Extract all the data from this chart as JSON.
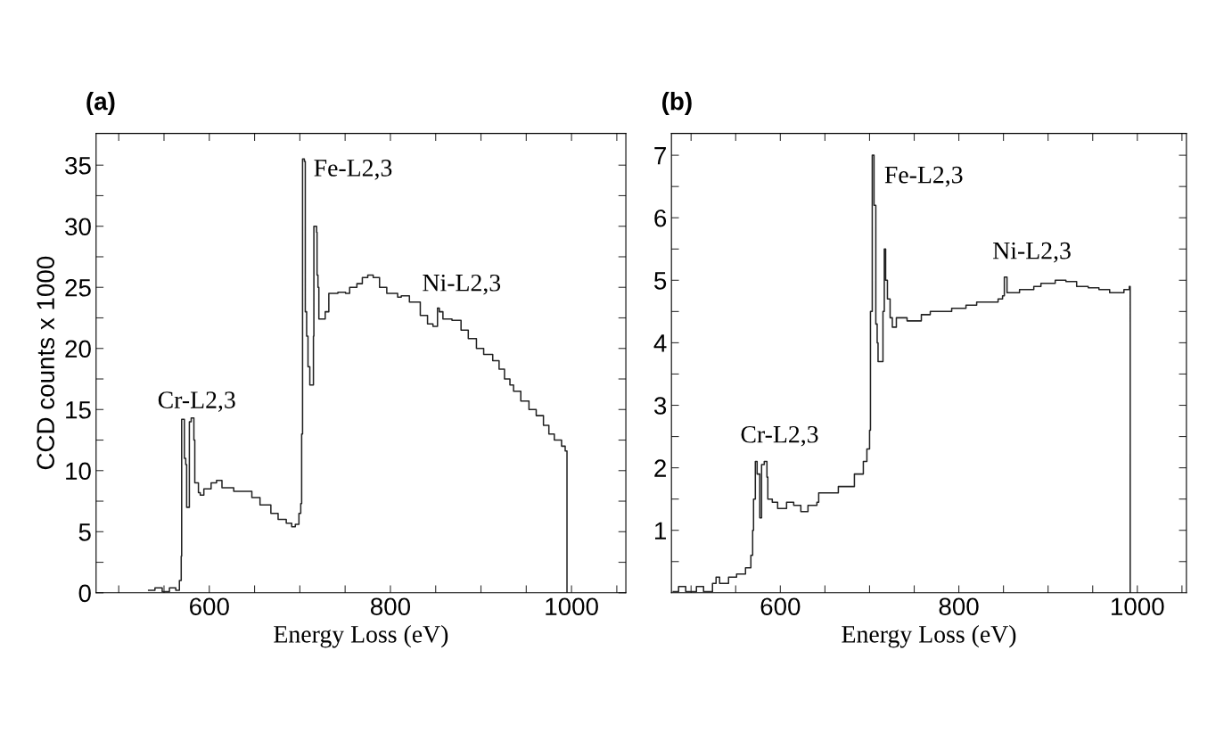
{
  "chart_data": [
    {
      "type": "step",
      "title": "(a)",
      "xlabel": "Energy Loss (eV)",
      "ylabel": "CCD counts x 1000",
      "xlim": [
        475,
        1060
      ],
      "ylim": [
        0,
        37.6
      ],
      "xticks": [
        {
          "value": 500,
          "label": null
        },
        {
          "value": 550,
          "label": null
        },
        600,
        {
          "value": 650,
          "label": null
        },
        {
          "value": 700,
          "label": null
        },
        {
          "value": 750,
          "label": null
        },
        800,
        {
          "value": 850,
          "label": null
        },
        {
          "value": 900,
          "label": null
        },
        {
          "value": 950,
          "label": null
        },
        1000,
        {
          "value": 1050,
          "label": null
        }
      ],
      "yticks": [
        0,
        {
          "value": 2.5,
          "label": null
        },
        5,
        {
          "value": 7.5,
          "label": null
        },
        10,
        {
          "value": 12.5,
          "label": null
        },
        15,
        {
          "value": 17.5,
          "label": null
        },
        20,
        {
          "value": 22.5,
          "label": null
        },
        25,
        {
          "value": 27.5,
          "label": null
        },
        30,
        {
          "value": 32.5,
          "label": null
        },
        35
      ],
      "series": [
        {
          "color": "#222222",
          "x": [
            533,
            540,
            548,
            556,
            563,
            567,
            569,
            569.5,
            572,
            572.5,
            574,
            575,
            577,
            578,
            580,
            583,
            584,
            588,
            590,
            594,
            602,
            608,
            614,
            627,
            639,
            647,
            656,
            668,
            676,
            685,
            691,
            695,
            699,
            701,
            702,
            703,
            705,
            706,
            707.5,
            709,
            710.5,
            711,
            714,
            715,
            715.5,
            718.5,
            719,
            720,
            721,
            726,
            728,
            732,
            742,
            750.5,
            755,
            763,
            769,
            775,
            781,
            788,
            796,
            808,
            812,
            821,
            833,
            841,
            847,
            852,
            854,
            858,
            868,
            878,
            886,
            895,
            903,
            913,
            920,
            926,
            932,
            936,
            944,
            953,
            961,
            969,
            975,
            981,
            989,
            993,
            995
          ],
          "values": [
            0.2,
            0.4,
            0.1,
            0.4,
            0.2,
            1,
            3,
            14.2,
            14.2,
            11,
            10.5,
            7,
            7,
            14,
            14.3,
            12.5,
            9,
            8.2,
            8,
            8.5,
            9,
            9.2,
            8.6,
            8.3,
            8.3,
            7.8,
            7.2,
            6.5,
            6,
            5.7,
            5.4,
            5.6,
            6.5,
            7.3,
            13,
            35.5,
            35.3,
            23,
            21,
            18.5,
            18.5,
            17,
            17,
            21,
            30,
            29.5,
            26,
            25,
            22.4,
            22.4,
            23,
            24.5,
            24.6,
            24.5,
            25,
            25.3,
            25.8,
            26,
            25.8,
            25,
            24.5,
            24.2,
            24.3,
            23.8,
            22.7,
            22,
            21.8,
            23.3,
            23,
            22.4,
            22.3,
            21.5,
            20.8,
            20,
            19.5,
            19,
            18.3,
            17.5,
            17,
            16.5,
            15.7,
            15,
            14.5,
            13.7,
            13,
            12.5,
            12,
            11.6,
            0
          ]
        }
      ],
      "annotations": [
        "Cr-L2,3",
        "Fe-L2,3",
        "Ni-L2,3"
      ]
    },
    {
      "type": "step",
      "title": "(b)",
      "xlabel": "Energy Loss (eV)",
      "xlim": [
        478,
        1055
      ],
      "ylim": [
        0,
        7.35
      ],
      "xticks": [
        {
          "value": 500,
          "label": null
        },
        {
          "value": 550,
          "label": null
        },
        600,
        {
          "value": 650,
          "label": null
        },
        {
          "value": 700,
          "label": null
        },
        {
          "value": 750,
          "label": null
        },
        800,
        {
          "value": 850,
          "label": null
        },
        {
          "value": 900,
          "label": null
        },
        {
          "value": 950,
          "label": null
        },
        1000,
        {
          "value": 1050,
          "label": null
        }
      ],
      "yticks": [
        {
          "value": 0.5,
          "label": null
        },
        1,
        {
          "value": 1.5,
          "label": null
        },
        2,
        {
          "value": 2.5,
          "label": null
        },
        3,
        {
          "value": 3.5,
          "label": null
        },
        4,
        {
          "value": 4.5,
          "label": null
        },
        5,
        {
          "value": 5.5,
          "label": null
        },
        6,
        {
          "value": 6.5,
          "label": null
        },
        7
      ],
      "series": [
        {
          "color": "#222222",
          "x": [
            480,
            486,
            494,
            506,
            514,
            524,
            528,
            532,
            542,
            551,
            561,
            567,
            569,
            570,
            572,
            574,
            577,
            579,
            582,
            585,
            586,
            591,
            597,
            607,
            615,
            623,
            631,
            641,
            643,
            655,
            665,
            673,
            683,
            693,
            697,
            700,
            701,
            703,
            705,
            707,
            708.5,
            709.5,
            714,
            715,
            716.5,
            718,
            720,
            723,
            725.5,
            730,
            742,
            756,
            758,
            768,
            780,
            792,
            808,
            820,
            832,
            844,
            849,
            851,
            854,
            860,
            868,
            884,
            892,
            908,
            920,
            932,
            945,
            957,
            969,
            985,
            991,
            992
          ],
          "values": [
            0.02,
            0.1,
            0.02,
            0.1,
            0.02,
            0.15,
            0.25,
            0.15,
            0.25,
            0.3,
            0.4,
            0.6,
            1.0,
            1.5,
            2.1,
            1.9,
            1.2,
            2.05,
            2.1,
            1.85,
            1.5,
            1.45,
            1.35,
            1.45,
            1.4,
            1.3,
            1.4,
            1.45,
            1.6,
            1.6,
            1.7,
            1.7,
            1.9,
            2.1,
            2.3,
            2.6,
            4.5,
            7.0,
            6.2,
            4.3,
            4.0,
            3.7,
            3.7,
            4.5,
            5.5,
            5.0,
            4.7,
            4.4,
            4.25,
            4.4,
            4.35,
            4.35,
            4.45,
            4.5,
            4.5,
            4.55,
            4.6,
            4.65,
            4.65,
            4.7,
            4.75,
            5.05,
            4.8,
            4.8,
            4.85,
            4.9,
            4.95,
            5.0,
            4.98,
            4.9,
            4.88,
            4.85,
            4.8,
            4.85,
            4.9,
            0
          ]
        }
      ],
      "annotations": [
        "Cr-L2,3",
        "Fe-L2,3",
        "Ni-L2,3"
      ]
    }
  ]
}
